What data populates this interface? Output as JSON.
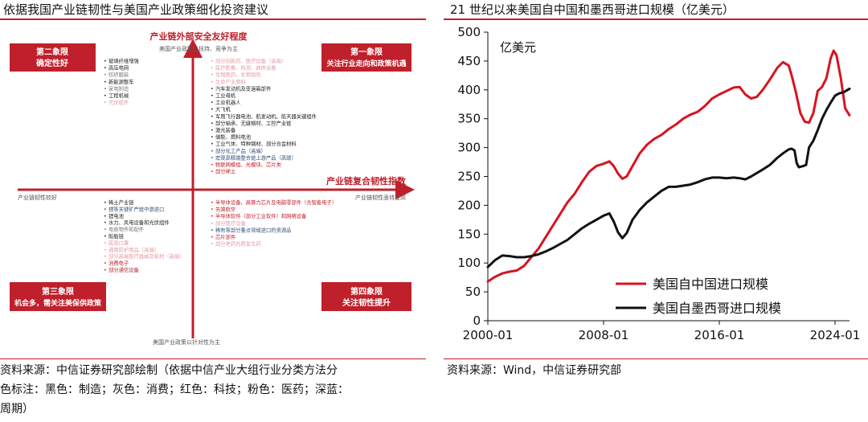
{
  "left": {
    "title": "依据我国产业链韧性与美国产业政策细化投资建议",
    "source": [
      "资料来源：中信证券研究部绘制（依据中信产业大组行业分类方法分",
      "色标注：黑色：制造；灰色：消费；红色：科技；粉色：医药；深蓝：",
      "周期）"
    ],
    "quadrant_chart": {
      "type": "quadrant",
      "y_axis_label": "产业链外部安全友好程度",
      "y_top_note": "美国产业政策以扶持、竞争为主",
      "y_bottom_note": "美国产业政策以针对性为主",
      "x_axis_label": "产业链复合韧性指数",
      "x_left_note": "产业链韧性较好",
      "x_right_note": "产业链韧性亟待提高",
      "quadrants": {
        "q2": [
          "第二象限",
          "确定性好"
        ],
        "q1": [
          "第一象限",
          "关注行业走向和政策机遇"
        ],
        "q3": [
          "第三象限",
          "机会多，需关注美保供政策"
        ],
        "q4": [
          "第四象限",
          "关注韧性提升"
        ]
      },
      "items_q2": [
        {
          "t": "玻璃纤维增强",
          "c": "#222222"
        },
        {
          "t": "高压电网",
          "c": "#222222"
        },
        {
          "t": "纺织服装",
          "c": "#7a7a7a"
        },
        {
          "t": "新能源整车",
          "c": "#222222"
        },
        {
          "t": "家电制造",
          "c": "#7a7a7a"
        },
        {
          "t": "工程机械",
          "c": "#222222"
        },
        {
          "t": "光伏组件",
          "c": "#e59aa5"
        }
      ],
      "items_q1": [
        {
          "t": "部分创新药、医疗设备（高端）",
          "c": "#e59aa5"
        },
        {
          "t": "医疗影像、检测、病床设备",
          "c": "#e59aa5"
        },
        {
          "t": "生物医药、生物制剂",
          "c": "#e59aa5"
        },
        {
          "t": "生命产业原料",
          "c": "#e59aa5"
        },
        {
          "t": "汽车发动机及变速箱部件",
          "c": "#222222"
        },
        {
          "t": "工业母机",
          "c": "#222222"
        },
        {
          "t": "工业机器人",
          "c": "#222222"
        },
        {
          "t": "大飞机",
          "c": "#222222"
        },
        {
          "t": "军用飞行器电池、航发动机、航天器关键组件",
          "c": "#222222"
        },
        {
          "t": "部分轴承、无缝钢材、工控产业链",
          "c": "#222222"
        },
        {
          "t": "激光装备",
          "c": "#222222"
        },
        {
          "t": "储能、燃料电池",
          "c": "#222222"
        },
        {
          "t": "工业气体、特种钢材、部分合金材料",
          "c": "#222222"
        },
        {
          "t": "部分化工产品（高端）",
          "c": "#33507a"
        },
        {
          "t": "宏观高精端整合链上游产品（高端）",
          "c": "#33507a"
        },
        {
          "t": "物联网模组、光模块、芯片类",
          "c": "#c0202b"
        },
        {
          "t": "部分稀土",
          "c": "#c0202b"
        }
      ],
      "items_q3": [
        {
          "t": "稀土产业链",
          "c": "#222222"
        },
        {
          "t": "锂等关键矿产链中游进口",
          "c": "#33507a"
        },
        {
          "t": "锂电池",
          "c": "#222222"
        },
        {
          "t": "水力、风电设备和光伏组件",
          "c": "#222222"
        },
        {
          "t": "电商物件和配件",
          "c": "#7a7a7a"
        },
        {
          "t": "船舶链",
          "c": "#222222"
        },
        {
          "t": "医用口罩",
          "c": "#e59aa5"
        },
        {
          "t": "通用防护用品（高端）",
          "c": "#e59aa5"
        },
        {
          "t": "部分高端医疗器械及耗材（高端）",
          "c": "#e59aa5"
        },
        {
          "t": "消费电子",
          "c": "#c0202b"
        },
        {
          "t": "部分通信设备",
          "c": "#c0202b"
        }
      ],
      "items_q4": [
        {
          "t": "半导体设备、高算力芯片及电脑零部件（含智能电子）",
          "c": "#c0202b"
        },
        {
          "t": "先端航空",
          "c": "#c0202b"
        },
        {
          "t": "半导体软件（部分工业软件）和网络设备",
          "c": "#c0202b"
        },
        {
          "t": "部分医疗设备",
          "c": "#e59aa5"
        },
        {
          "t": "稀有等部分重点领域进口的资源品",
          "c": "#33507a"
        },
        {
          "t": "芯片部件",
          "c": "#c0202b"
        },
        {
          "t": "部分老药的原发生药",
          "c": "#e59aa5"
        }
      ]
    }
  },
  "right": {
    "title": "21 世纪以来美国自中国和墨西哥进口规模（亿美元）",
    "source": "资料来源：Wind，中信证券研究部"
  },
  "chart_data": {
    "type": "line",
    "title": "21 世纪以来美国自中国和墨西哥进口规模（亿美元）",
    "unit_label": "亿美元",
    "x_tick_labels": [
      "2000-01",
      "2008-01",
      "2016-01",
      "2024-01"
    ],
    "xlim": [
      2000.0,
      2025.0
    ],
    "ylim": [
      0,
      500
    ],
    "y_ticks": [
      0,
      50,
      100,
      150,
      200,
      250,
      300,
      350,
      400,
      450,
      500
    ],
    "legend_position": "bottom-center",
    "grid": false,
    "series": [
      {
        "name": "美国自中国进口规模",
        "color": "#d7141f",
        "points": [
          [
            2000.0,
            68
          ],
          [
            2000.5,
            76
          ],
          [
            2001.0,
            82
          ],
          [
            2001.5,
            85
          ],
          [
            2002.0,
            87
          ],
          [
            2002.5,
            95
          ],
          [
            2003.0,
            110
          ],
          [
            2003.5,
            125
          ],
          [
            2004.0,
            145
          ],
          [
            2004.5,
            165
          ],
          [
            2005.0,
            185
          ],
          [
            2005.5,
            205
          ],
          [
            2006.0,
            220
          ],
          [
            2006.5,
            240
          ],
          [
            2007.0,
            258
          ],
          [
            2007.5,
            268
          ],
          [
            2008.0,
            272
          ],
          [
            2008.4,
            276
          ],
          [
            2008.7,
            268
          ],
          [
            2009.0,
            255
          ],
          [
            2009.3,
            246
          ],
          [
            2009.6,
            250
          ],
          [
            2010.0,
            268
          ],
          [
            2010.5,
            290
          ],
          [
            2011.0,
            305
          ],
          [
            2011.5,
            315
          ],
          [
            2012.0,
            322
          ],
          [
            2012.5,
            332
          ],
          [
            2013.0,
            340
          ],
          [
            2013.5,
            350
          ],
          [
            2014.0,
            357
          ],
          [
            2014.5,
            362
          ],
          [
            2015.0,
            372
          ],
          [
            2015.5,
            385
          ],
          [
            2016.0,
            392
          ],
          [
            2016.5,
            398
          ],
          [
            2017.0,
            404
          ],
          [
            2017.4,
            405
          ],
          [
            2017.8,
            392
          ],
          [
            2018.2,
            385
          ],
          [
            2018.6,
            388
          ],
          [
            2019.0,
            400
          ],
          [
            2019.5,
            418
          ],
          [
            2020.0,
            438
          ],
          [
            2020.4,
            448
          ],
          [
            2020.8,
            442
          ],
          [
            2021.0,
            425
          ],
          [
            2021.3,
            395
          ],
          [
            2021.6,
            360
          ],
          [
            2021.9,
            345
          ],
          [
            2022.2,
            343
          ],
          [
            2022.5,
            360
          ],
          [
            2022.8,
            398
          ],
          [
            2023.1,
            405
          ],
          [
            2023.4,
            420
          ],
          [
            2023.7,
            455
          ],
          [
            2023.9,
            468
          ],
          [
            2024.1,
            460
          ],
          [
            2024.4,
            420
          ],
          [
            2024.7,
            368
          ],
          [
            2025.0,
            356
          ]
        ]
      },
      {
        "name": "美国自墨西哥进口规模",
        "color": "#111111",
        "points": [
          [
            2000.0,
            93
          ],
          [
            2000.5,
            105
          ],
          [
            2001.0,
            113
          ],
          [
            2001.5,
            112
          ],
          [
            2002.0,
            110
          ],
          [
            2002.5,
            110
          ],
          [
            2003.0,
            112
          ],
          [
            2003.5,
            115
          ],
          [
            2004.0,
            120
          ],
          [
            2004.5,
            126
          ],
          [
            2005.0,
            133
          ],
          [
            2005.5,
            140
          ],
          [
            2006.0,
            150
          ],
          [
            2006.5,
            160
          ],
          [
            2007.0,
            168
          ],
          [
            2007.5,
            175
          ],
          [
            2008.0,
            182
          ],
          [
            2008.4,
            186
          ],
          [
            2008.7,
            172
          ],
          [
            2009.0,
            153
          ],
          [
            2009.3,
            143
          ],
          [
            2009.6,
            152
          ],
          [
            2010.0,
            175
          ],
          [
            2010.5,
            192
          ],
          [
            2011.0,
            205
          ],
          [
            2011.5,
            215
          ],
          [
            2012.0,
            225
          ],
          [
            2012.5,
            232
          ],
          [
            2013.0,
            232
          ],
          [
            2013.5,
            234
          ],
          [
            2014.0,
            236
          ],
          [
            2014.5,
            240
          ],
          [
            2015.0,
            245
          ],
          [
            2015.5,
            248
          ],
          [
            2016.0,
            248
          ],
          [
            2016.5,
            247
          ],
          [
            2017.0,
            248
          ],
          [
            2017.4,
            247
          ],
          [
            2017.8,
            245
          ],
          [
            2018.2,
            250
          ],
          [
            2018.6,
            256
          ],
          [
            2019.0,
            262
          ],
          [
            2019.5,
            270
          ],
          [
            2020.0,
            282
          ],
          [
            2020.4,
            290
          ],
          [
            2020.8,
            297
          ],
          [
            2021.0,
            298
          ],
          [
            2021.2,
            295
          ],
          [
            2021.35,
            273
          ],
          [
            2021.5,
            266
          ],
          [
            2021.8,
            268
          ],
          [
            2022.0,
            270
          ],
          [
            2022.2,
            300
          ],
          [
            2022.5,
            312
          ],
          [
            2022.8,
            330
          ],
          [
            2023.1,
            350
          ],
          [
            2023.4,
            365
          ],
          [
            2023.7,
            378
          ],
          [
            2024.0,
            390
          ],
          [
            2024.3,
            394
          ],
          [
            2024.6,
            396
          ],
          [
            2025.0,
            402
          ]
        ]
      }
    ]
  }
}
